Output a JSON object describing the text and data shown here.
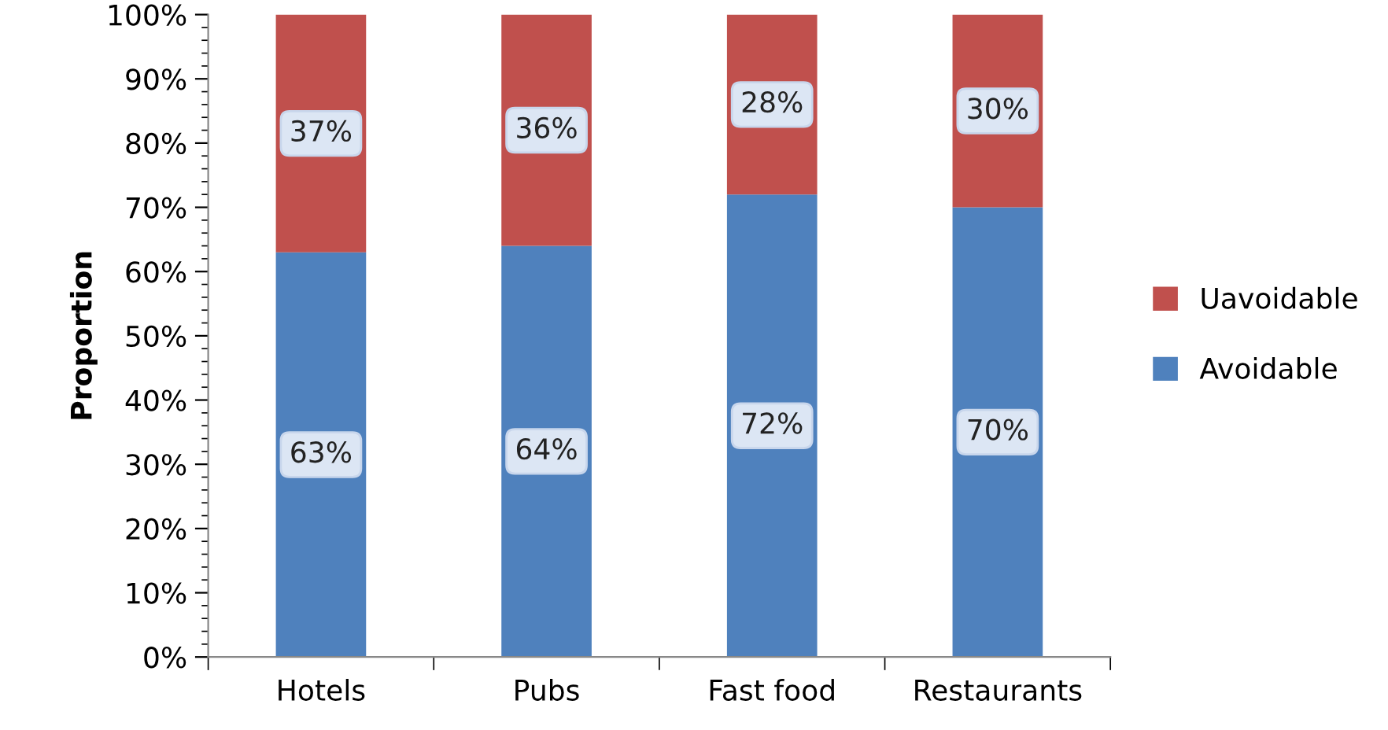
{
  "chart_data": {
    "type": "bar",
    "stacked": true,
    "ylabel": "Proportion",
    "categories": [
      "Hotels",
      "Pubs",
      "Fast food",
      "Restaurants"
    ],
    "series": [
      {
        "name": "Avoidable",
        "color": "#4f81bd",
        "values": [
          63,
          64,
          72,
          70
        ],
        "value_labels": [
          "63%",
          "64%",
          "72%",
          "70%"
        ]
      },
      {
        "name": "Uavoidable",
        "color": "#c0504d",
        "values": [
          37,
          36,
          28,
          30
        ],
        "value_labels": [
          "37%",
          "36%",
          "28%",
          "30%"
        ]
      }
    ],
    "ylim": [
      0,
      100
    ],
    "yticks": [
      {
        "value": 0,
        "label": "0%"
      },
      {
        "value": 10,
        "label": "10%"
      },
      {
        "value": 20,
        "label": "20%"
      },
      {
        "value": 30,
        "label": "30%"
      },
      {
        "value": 40,
        "label": "40%"
      },
      {
        "value": 50,
        "label": "50%"
      },
      {
        "value": 60,
        "label": "60%"
      },
      {
        "value": 70,
        "label": "70%"
      },
      {
        "value": 80,
        "label": "80%"
      },
      {
        "value": 90,
        "label": "90%"
      },
      {
        "value": 100,
        "label": "100%"
      }
    ],
    "grid": false,
    "legend": "right"
  }
}
